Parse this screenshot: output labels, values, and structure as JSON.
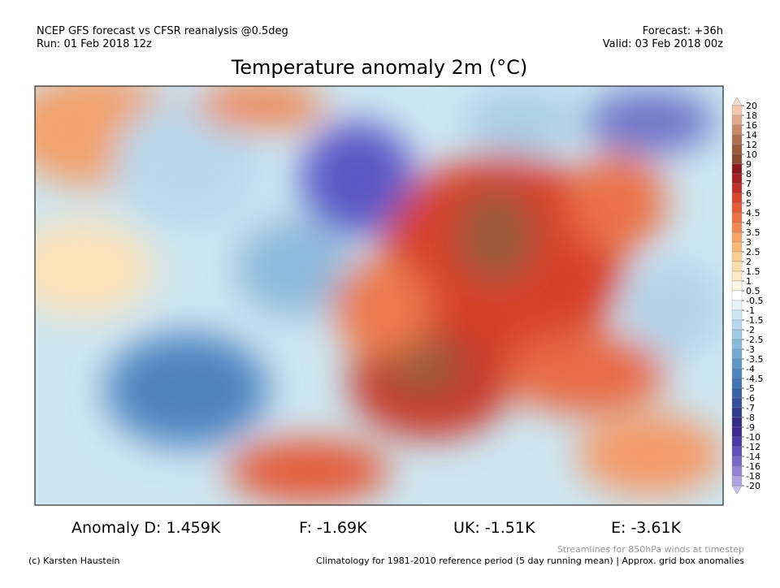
{
  "header": {
    "source": "NCEP GFS forecast vs CFSR reanalysis @0.5deg",
    "run": "Run: 01 Feb 2018 12z",
    "forecast": "Forecast: +36h",
    "valid": "Valid: 03 Feb 2018 00z",
    "title": "Temperature anomaly 2m (°C)"
  },
  "colorbar": {
    "ticks": [
      20,
      18,
      16,
      14,
      12,
      10,
      9,
      8,
      7,
      6,
      5,
      4.5,
      4,
      3.5,
      3,
      2.5,
      2,
      1.5,
      1,
      0.5,
      -0.5,
      -1,
      -1.5,
      -2,
      -2.5,
      -3,
      -3.5,
      -4,
      -4.5,
      -5,
      -6,
      -7,
      -8,
      -9,
      -10,
      -12,
      -14,
      -16,
      -18,
      -20
    ]
  },
  "anomalies": [
    "Anomaly D: 1.459K",
    "F: -1.69K",
    "UK: -1.51K",
    "E: -3.61K"
  ],
  "footer": {
    "credit": "(c) Karsten Haustein",
    "streamlines": "Streamlines for 850hPa winds at timestep",
    "climatology": "Climatology for 1981-2010 reference period (5 day running mean) | Approx. grid box anomalies"
  }
}
